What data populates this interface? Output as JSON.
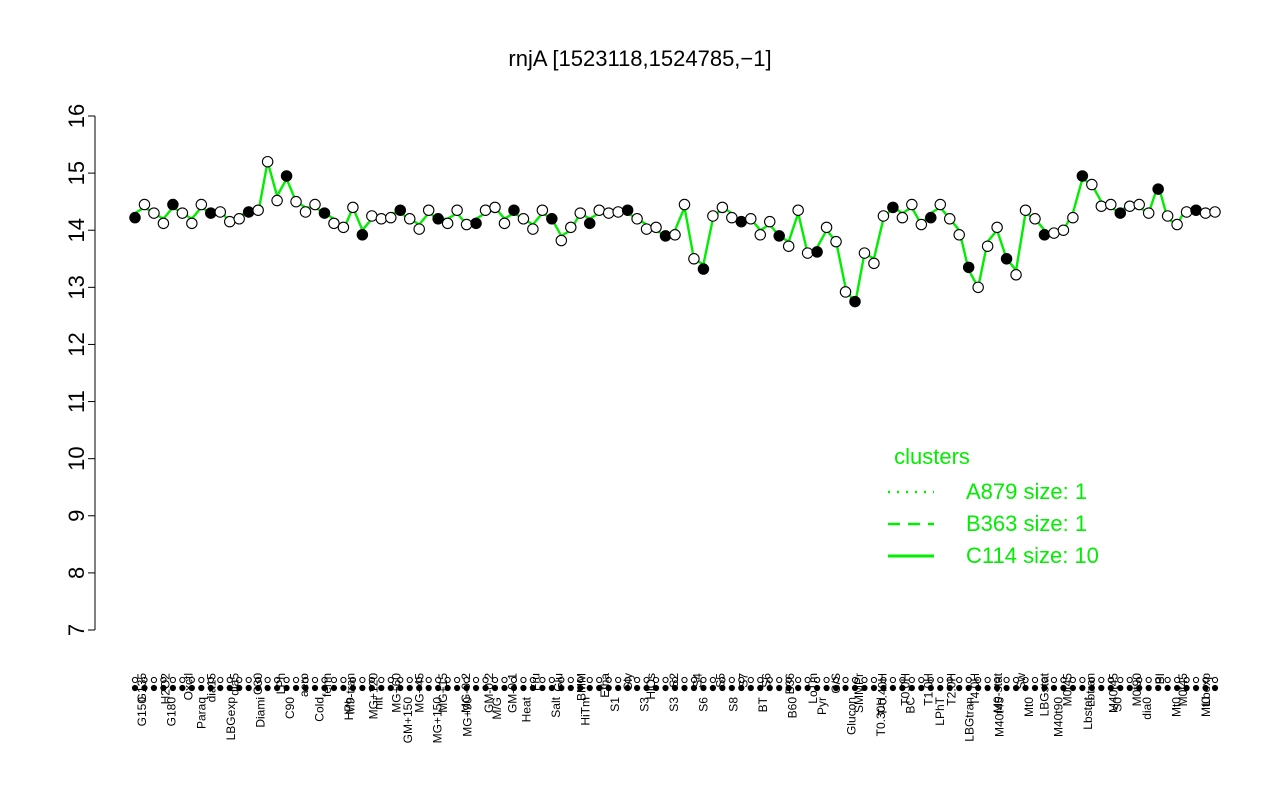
{
  "chart_data": {
    "type": "line",
    "title": "rnjA [1523118,1524785,−1]",
    "xlabel": "",
    "ylabel": "",
    "ylim": [
      7,
      16
    ],
    "yticks": [
      "7",
      "8",
      "9",
      "10",
      "11",
      "12",
      "13",
      "14",
      "15",
      "16"
    ],
    "grid": false,
    "x_top_labels": [
      "G135",
      "H2O2",
      "Oxctl",
      "dia15",
      "dia5",
      "C30",
      "LPh",
      "aero",
      "ferm",
      "M9-tran",
      "MG+120",
      "MG+60",
      "MG+45",
      "MG+15",
      "MG-0.2",
      "GM-0.2",
      "GM-0.1",
      "Fru",
      "Glu",
      "BMM",
      "Etha",
      "Gly",
      "HiOs",
      "S2",
      "S4",
      "S5",
      "S7",
      "S6",
      "B36",
      "LoTm",
      "G/S",
      "SMMPr",
      "T-0.40H",
      "T0.0H",
      "T1.0H",
      "T2.0H",
      "T4.0H",
      "M9-stat",
      "Sw",
      "LBGstat",
      "M0t45",
      "Lbtran",
      "M40t45",
      "M0t90",
      "BI",
      "M0t45",
      "Lbexp"
    ],
    "x_bottom_labels": [
      "G150",
      "G180",
      "Paraq",
      "LBGexp",
      "Diami",
      "C90",
      "Cold",
      "HPh",
      "nit",
      "GM+150",
      "MG+150",
      "MG+90",
      "M/G",
      "Heat",
      "Salt",
      "HiTm",
      "S1",
      "S3",
      "S3",
      "S6",
      "S8",
      "BT",
      "B60",
      "Pyr",
      "Glucon",
      "T0.30H",
      "BC",
      "LPhT",
      "LBGtran",
      "M40t45",
      "Mt0",
      "M40t90",
      "Lbstat",
      "S0",
      "dia0",
      "Mt0",
      "Mt0"
    ],
    "series": [
      {
        "values": [
          14.3,
          14.4,
          14.3,
          14.2,
          14.4,
          14.3,
          14.2,
          14.4,
          14.3,
          14.4,
          14.1,
          14.2,
          14.4,
          14.3,
          15.2,
          14.6,
          14.9,
          14.5,
          14.4,
          14.4,
          14.3,
          14.2,
          14.0,
          14.4,
          14.0,
          14.2,
          14.2,
          14.3,
          14.3,
          14.2,
          14.1,
          14.3,
          14.2,
          14.2,
          14.3,
          14.1,
          14.2,
          14.3,
          14.4,
          14.2,
          14.3,
          14.2,
          14.1,
          14.3,
          14.2,
          13.9,
          14.0,
          14.3,
          14.2,
          14.3,
          14.3,
          14.4,
          14.3,
          14.2,
          14.1,
          14.0,
          13.9,
          14.0,
          14.4,
          13.5,
          13.4,
          14.2,
          14.4,
          14.3,
          14.1,
          14.2,
          14.0,
          14.1,
          13.9,
          13.8,
          14.3,
          13.6,
          13.7,
          14.0,
          13.8,
          13.0,
          12.7,
          13.6,
          13.5,
          14.2,
          14.4,
          14.3,
          14.4,
          14.1,
          14.3,
          14.4,
          14.2,
          14.0,
          13.3,
          13.0,
          13.8,
          14.0,
          13.5,
          13.3,
          14.3,
          14.2,
          14.0,
          13.9,
          14.0,
          14.3,
          14.9,
          14.8,
          14.5,
          14.4,
          14.3,
          14.5,
          14.4,
          14.3,
          14.8,
          14.2,
          14.1,
          14.4,
          14.3,
          14.3,
          14.4
        ]
      }
    ],
    "legend": {
      "title": "clusters",
      "position": "bottom-right",
      "entries": [
        {
          "label": "A879 size: 1",
          "style": "dotted"
        },
        {
          "label": "B363 size: 1",
          "style": "dashed"
        },
        {
          "label": "C114 size: 10",
          "style": "solid"
        }
      ]
    },
    "colors": {
      "line": "#00ee00",
      "legend": "#00ee00",
      "points": "#000000",
      "point_fill": "#ffffff"
    }
  }
}
